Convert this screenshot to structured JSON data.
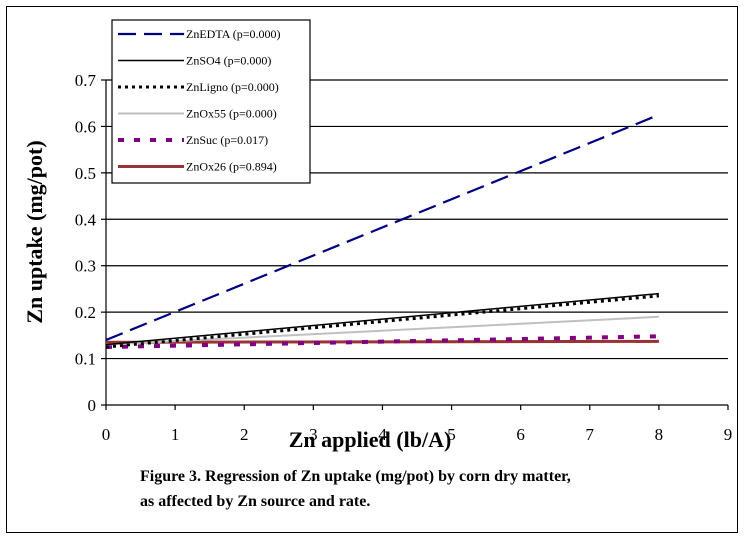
{
  "chart_data": {
    "type": "line",
    "xlabel": "Zn applied (lb/A)",
    "ylabel": "Zn uptake (mg/pot)",
    "xlim": [
      0,
      9
    ],
    "ylim": [
      0,
      0.7
    ],
    "x_ticks": [
      "0",
      "1",
      "2",
      "3",
      "4",
      "5",
      "6",
      "7",
      "8",
      "9"
    ],
    "y_ticks": [
      "0",
      "0.1",
      "0.2",
      "0.3",
      "0.4",
      "0.5",
      "0.6",
      "0.7"
    ],
    "grid": "horizontal",
    "legend_position": "top-left",
    "series": [
      {
        "name": "ZnEDTA (p=0.000)",
        "x": [
          0,
          8
        ],
        "y": [
          0.14,
          0.625
        ],
        "color": "#000080",
        "style": "long-dash"
      },
      {
        "name": "ZnSO4 (p=0.000)",
        "x": [
          0,
          8
        ],
        "y": [
          0.13,
          0.24
        ],
        "color": "#000000",
        "style": "solid"
      },
      {
        "name": "ZnLigno (p=0.000)",
        "x": [
          0,
          8
        ],
        "y": [
          0.125,
          0.235
        ],
        "color": "#000000",
        "style": "dotted"
      },
      {
        "name": "ZnOx55 (p=0.000)",
        "x": [
          0,
          8
        ],
        "y": [
          0.13,
          0.19
        ],
        "color": "#c0c0c0",
        "style": "solid"
      },
      {
        "name": "ZnSuc (p=0.017)",
        "x": [
          0,
          8
        ],
        "y": [
          0.125,
          0.148
        ],
        "color": "#800080",
        "style": "dashed"
      },
      {
        "name": "ZnOx26 (p=0.894)",
        "x": [
          0,
          8
        ],
        "y": [
          0.135,
          0.137
        ],
        "color": "#993333",
        "style": "solid-thick"
      }
    ]
  },
  "caption": {
    "line1": "Figure 3.  Regression of Zn uptake (mg/pot) by corn dry matter,",
    "line2": "as affected by Zn source and rate."
  }
}
